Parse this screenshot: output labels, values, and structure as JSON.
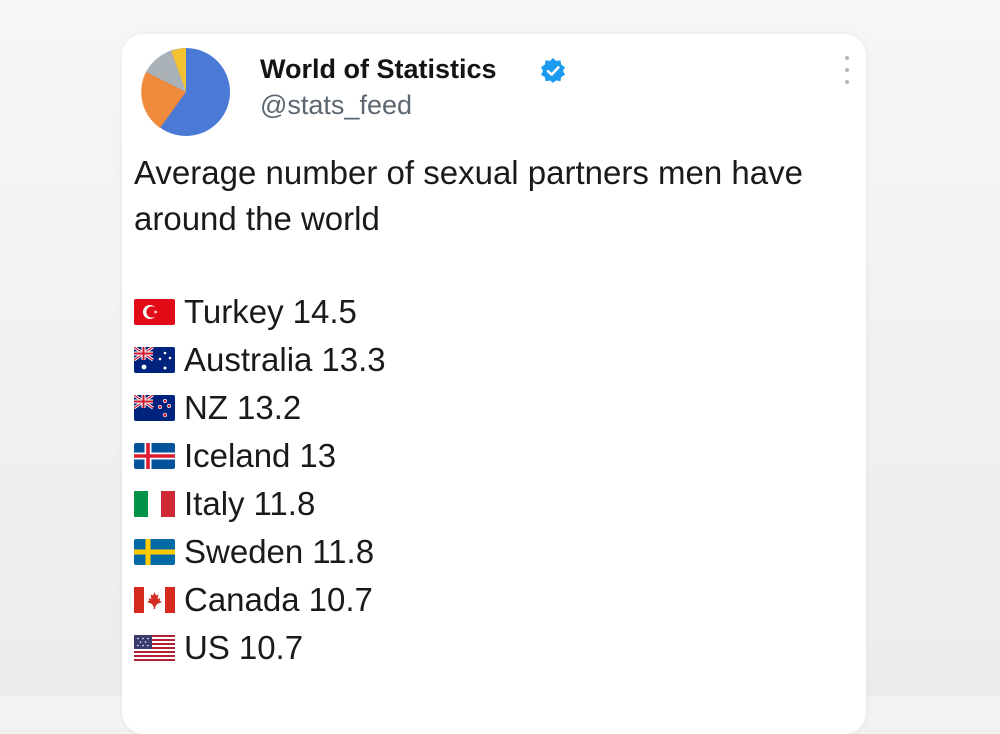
{
  "tweet": {
    "author_name": "World of Statistics",
    "handle": "@stats_feed",
    "text": "Average number of sexual partners men have around the world",
    "icons": {
      "avatar": "pie-chart-avatar-icon",
      "verified": "verified-badge-icon",
      "more": "more-options-icon"
    },
    "colors": {
      "verified": "#1d9bf0",
      "pie_blue": "#4a79d6",
      "pie_orange": "#f08a3c",
      "pie_gray": "#aab2b8",
      "pie_yellow": "#f2c230"
    },
    "stats": [
      {
        "flag": "turkey-flag-icon",
        "country": "Turkey",
        "value": "14.5"
      },
      {
        "flag": "australia-flag-icon",
        "country": "Australia",
        "value": "13.3"
      },
      {
        "flag": "new-zealand-flag-icon",
        "country": "NZ",
        "value": "13.2"
      },
      {
        "flag": "iceland-flag-icon",
        "country": "Iceland",
        "value": "13"
      },
      {
        "flag": "italy-flag-icon",
        "country": "Italy",
        "value": "11.8"
      },
      {
        "flag": "sweden-flag-icon",
        "country": "Sweden",
        "value": "11.8"
      },
      {
        "flag": "canada-flag-icon",
        "country": "Canada",
        "value": "10.7"
      },
      {
        "flag": "us-flag-icon",
        "country": "US",
        "value": "10.7"
      }
    ]
  }
}
